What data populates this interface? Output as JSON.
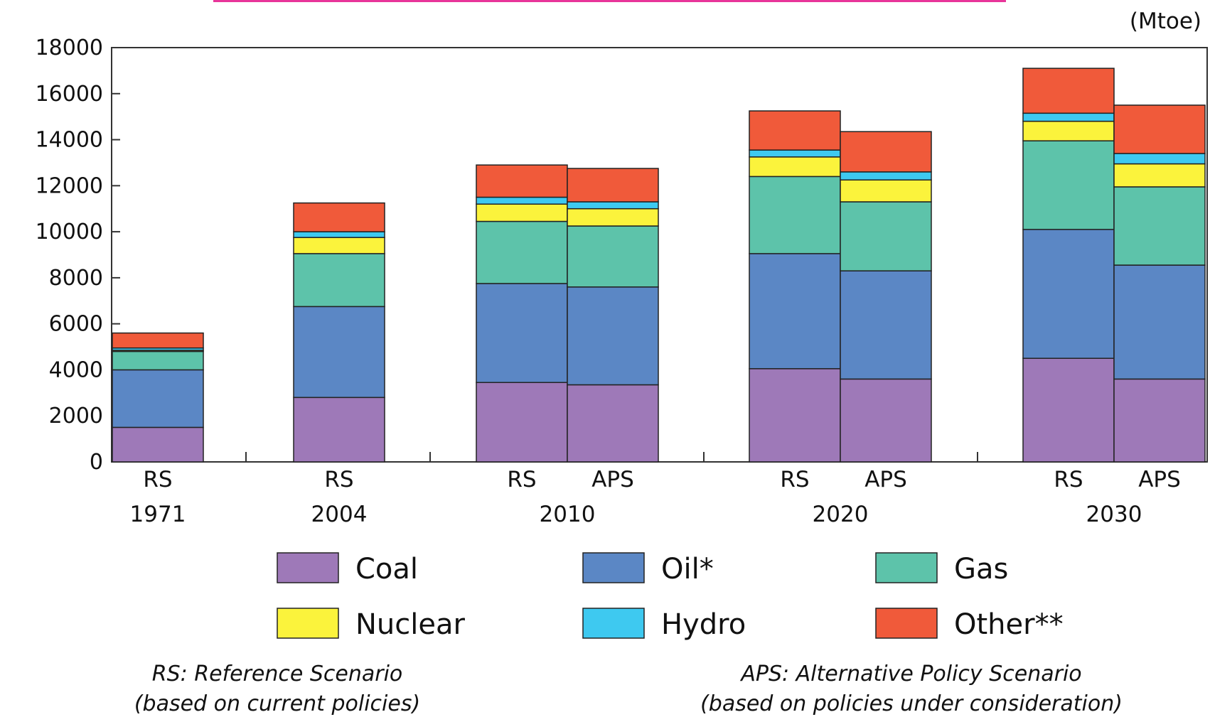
{
  "chart_data": {
    "type": "bar",
    "stacked": true,
    "unit_label": "(Mtoe)",
    "ylim": [
      0,
      18000
    ],
    "yticks": [
      0,
      2000,
      4000,
      6000,
      8000,
      10000,
      12000,
      14000,
      16000,
      18000
    ],
    "groups": [
      {
        "year": "1971",
        "bars": [
          {
            "scenario": "RS",
            "values": [
              1500,
              2500,
              800,
              50,
              100,
              650
            ]
          }
        ]
      },
      {
        "year": "2004",
        "bars": [
          {
            "scenario": "RS",
            "values": [
              2800,
              3950,
              2300,
              700,
              250,
              1250
            ]
          }
        ]
      },
      {
        "year": "2010",
        "bars": [
          {
            "scenario": "RS",
            "values": [
              3450,
              4300,
              2700,
              750,
              300,
              1400
            ]
          },
          {
            "scenario": "APS",
            "values": [
              3350,
              4250,
              2650,
              750,
              300,
              1450
            ]
          }
        ]
      },
      {
        "year": "2020",
        "bars": [
          {
            "scenario": "RS",
            "values": [
              4050,
              5000,
              3350,
              850,
              300,
              1700
            ]
          },
          {
            "scenario": "APS",
            "values": [
              3600,
              4700,
              3000,
              950,
              350,
              1750
            ]
          }
        ]
      },
      {
        "year": "2030",
        "bars": [
          {
            "scenario": "RS",
            "values": [
              4500,
              5600,
              3850,
              850,
              350,
              1950
            ]
          },
          {
            "scenario": "APS",
            "values": [
              3600,
              4950,
              3400,
              1000,
              450,
              2100
            ]
          }
        ]
      }
    ],
    "series": [
      {
        "name": "Coal",
        "color": "#9e79b8"
      },
      {
        "name": "Oil*",
        "color": "#5b87c5"
      },
      {
        "name": "Gas",
        "color": "#5dc3aa"
      },
      {
        "name": "Nuclear",
        "color": "#fbf33c"
      },
      {
        "name": "Hydro",
        "color": "#3ec9f0"
      },
      {
        "name": "Other**",
        "color": "#f05a3a"
      }
    ],
    "notes": [
      {
        "line1": "RS: Reference Scenario",
        "line2": "(based on current policies)"
      },
      {
        "line1": "APS: Alternative Policy Scenario",
        "line2": "(based on policies under consideration)"
      }
    ],
    "legend_position": "bottom",
    "grid": false
  }
}
